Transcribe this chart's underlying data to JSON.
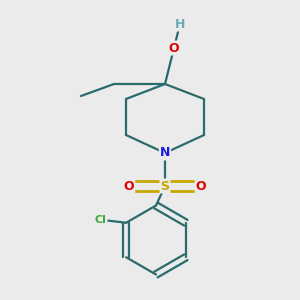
{
  "bg_color": "#ebebeb",
  "atom_colors": {
    "C": "#2a6b6b",
    "H": "#6baab5",
    "O": "#e00000",
    "N": "#1a1ae0",
    "S": "#c8a800",
    "Cl": "#3aaa3a"
  },
  "bond_color": "#2a6b6b",
  "bond_width": 1.6
}
